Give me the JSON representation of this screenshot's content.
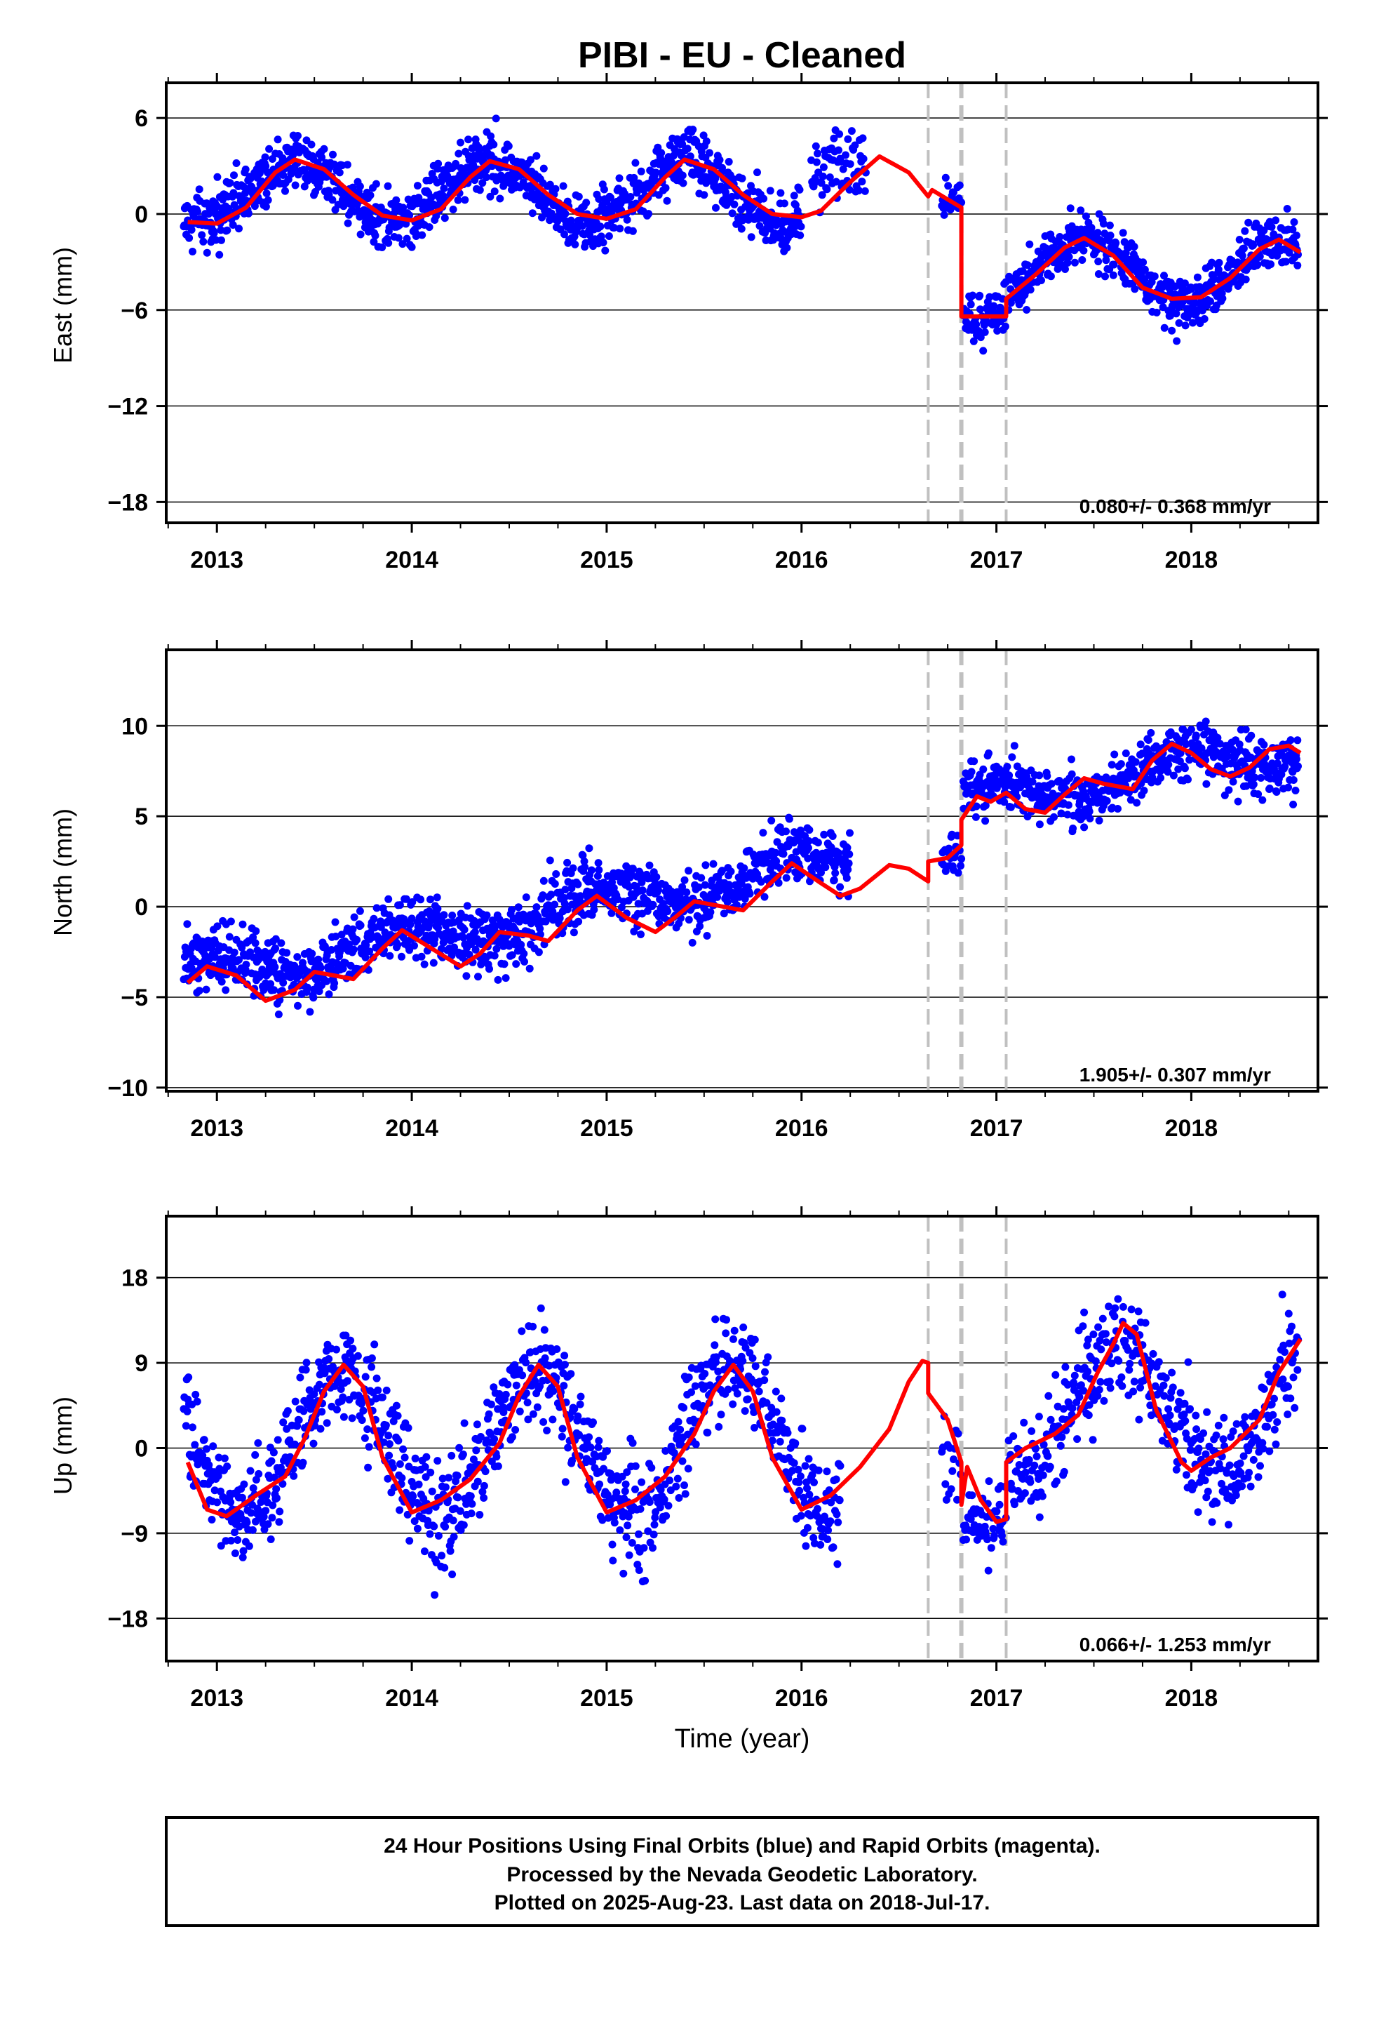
{
  "title": "PIBI  - EU - Cleaned",
  "xlabel": "Time (year)",
  "footer": {
    "line1": "24 Hour Positions Using Final Orbits (blue) and Rapid Orbits (magenta).",
    "line2": "Processed by the Nevada Geodetic Laboratory.",
    "line3": "Plotted on 2025-Aug-23. Last data on 2018-Jul-17."
  },
  "chart_data": [
    {
      "type": "scatter",
      "ylabel": "East (mm)",
      "rate": "0.080+/- 0.368 mm/yr",
      "xlim": [
        2012.74,
        2018.65
      ],
      "ylim": [
        -19.3,
        8.2
      ],
      "yticks": [
        6,
        0,
        -6,
        -12,
        -18
      ],
      "ytick_labels": [
        "6",
        "0",
        "−6",
        "−12",
        "−18"
      ],
      "xticks": [
        2013,
        2014,
        2015,
        2016,
        2017,
        2018
      ],
      "xtick_labels": [
        "2013",
        "2014",
        "2015",
        "2016",
        "2017",
        "2018"
      ],
      "dashed_lines": [
        2016.65,
        2016.82,
        2017.05
      ],
      "fit_line": [
        [
          2012.85,
          -0.5
        ],
        [
          2013.0,
          -0.6
        ],
        [
          2013.15,
          0.4
        ],
        [
          2013.3,
          2.6
        ],
        [
          2013.4,
          3.4
        ],
        [
          2013.55,
          2.8
        ],
        [
          2013.7,
          1.2
        ],
        [
          2013.85,
          -0.1
        ],
        [
          2014.0,
          -0.4
        ],
        [
          2014.15,
          0.3
        ],
        [
          2014.3,
          2.3
        ],
        [
          2014.4,
          3.3
        ],
        [
          2014.55,
          2.8
        ],
        [
          2014.7,
          1.2
        ],
        [
          2014.85,
          0.0
        ],
        [
          2015.0,
          -0.3
        ],
        [
          2015.15,
          0.3
        ],
        [
          2015.3,
          2.3
        ],
        [
          2015.4,
          3.4
        ],
        [
          2015.55,
          2.8
        ],
        [
          2015.7,
          1.2
        ],
        [
          2015.85,
          0.0
        ],
        [
          2016.0,
          -0.2
        ],
        [
          2016.1,
          0.2
        ],
        [
          2016.25,
          2.0
        ],
        [
          2016.4,
          3.6
        ],
        [
          2016.55,
          2.6
        ],
        [
          2016.65,
          1.1
        ],
        [
          2016.67,
          1.5
        ],
        [
          2016.82,
          0.4
        ],
        [
          2016.82,
          -6.4
        ],
        [
          2017.05,
          -6.4
        ],
        [
          2017.05,
          -5.3
        ],
        [
          2017.2,
          -3.8
        ],
        [
          2017.35,
          -2.1
        ],
        [
          2017.45,
          -1.5
        ],
        [
          2017.6,
          -2.6
        ],
        [
          2017.75,
          -4.6
        ],
        [
          2017.9,
          -5.3
        ],
        [
          2018.05,
          -5.2
        ],
        [
          2018.2,
          -4.0
        ],
        [
          2018.35,
          -2.2
        ],
        [
          2018.45,
          -1.6
        ],
        [
          2018.56,
          -2.4
        ]
      ],
      "segments": [
        {
          "x0": 2012.83,
          "x1": 2016.0,
          "model": "seasonal",
          "base": 1.4,
          "amp": 1.9,
          "phase": 2013.4,
          "noise": 1.3,
          "step": 0.0025
        },
        {
          "x0": 2016.05,
          "x1": 2016.33,
          "model": "linear",
          "a": 2.8,
          "b": 0.0,
          "noise": 1.6,
          "step": 0.004
        },
        {
          "x0": 2016.72,
          "x1": 2016.82,
          "model": "linear",
          "a": 0.8,
          "b": 0.0,
          "noise": 0.8,
          "step": 0.004
        },
        {
          "x0": 2016.83,
          "x1": 2017.05,
          "model": "linear",
          "a": -6.5,
          "b": 0.0,
          "noise": 1.2,
          "step": 0.003
        },
        {
          "x0": 2017.06,
          "x1": 2018.55,
          "model": "seasonal",
          "base": -3.5,
          "amp": 1.9,
          "phase": 2017.45,
          "noise": 1.1,
          "step": 0.0025
        }
      ]
    },
    {
      "type": "scatter",
      "ylabel": "North (mm)",
      "rate": "1.905+/- 0.307 mm/yr",
      "xlim": [
        2012.74,
        2018.65
      ],
      "ylim": [
        -10.2,
        14.2
      ],
      "yticks": [
        10,
        5,
        0,
        -5,
        -10
      ],
      "ytick_labels": [
        "10",
        "5",
        "0",
        "−5",
        "−10"
      ],
      "xticks": [
        2013,
        2014,
        2015,
        2016,
        2017,
        2018
      ],
      "xtick_labels": [
        "2013",
        "2014",
        "2015",
        "2016",
        "2017",
        "2018"
      ],
      "dashed_lines": [
        2016.65,
        2016.82,
        2017.05
      ],
      "fit_line": [
        [
          2012.85,
          -4.2
        ],
        [
          2012.95,
          -3.3
        ],
        [
          2013.1,
          -3.8
        ],
        [
          2013.25,
          -5.2
        ],
        [
          2013.4,
          -4.6
        ],
        [
          2013.5,
          -3.6
        ],
        [
          2013.6,
          -3.8
        ],
        [
          2013.7,
          -4.0
        ],
        [
          2013.85,
          -2.3
        ],
        [
          2013.95,
          -1.3
        ],
        [
          2014.1,
          -2.3
        ],
        [
          2014.25,
          -3.3
        ],
        [
          2014.35,
          -2.6
        ],
        [
          2014.45,
          -1.4
        ],
        [
          2014.6,
          -1.6
        ],
        [
          2014.7,
          -1.9
        ],
        [
          2014.85,
          -0.2
        ],
        [
          2014.95,
          0.6
        ],
        [
          2015.1,
          -0.6
        ],
        [
          2015.25,
          -1.4
        ],
        [
          2015.35,
          -0.6
        ],
        [
          2015.45,
          0.3
        ],
        [
          2015.6,
          0.0
        ],
        [
          2015.7,
          -0.2
        ],
        [
          2015.85,
          1.4
        ],
        [
          2015.95,
          2.4
        ],
        [
          2016.1,
          1.3
        ],
        [
          2016.2,
          0.6
        ],
        [
          2016.3,
          1.0
        ],
        [
          2016.45,
          2.3
        ],
        [
          2016.55,
          2.1
        ],
        [
          2016.65,
          1.4
        ],
        [
          2016.65,
          2.5
        ],
        [
          2016.75,
          2.7
        ],
        [
          2016.82,
          3.4
        ],
        [
          2016.82,
          4.8
        ],
        [
          2016.9,
          6.1
        ],
        [
          2016.97,
          5.8
        ],
        [
          2017.05,
          6.3
        ],
        [
          2017.15,
          5.4
        ],
        [
          2017.25,
          5.2
        ],
        [
          2017.35,
          6.2
        ],
        [
          2017.45,
          7.1
        ],
        [
          2017.55,
          6.8
        ],
        [
          2017.7,
          6.5
        ],
        [
          2017.8,
          8.1
        ],
        [
          2017.9,
          9.0
        ],
        [
          2018.0,
          8.5
        ],
        [
          2018.1,
          7.6
        ],
        [
          2018.2,
          7.2
        ],
        [
          2018.3,
          7.7
        ],
        [
          2018.4,
          8.7
        ],
        [
          2018.5,
          8.9
        ],
        [
          2018.56,
          8.5
        ]
      ],
      "segments": [
        {
          "x0": 2012.83,
          "x1": 2016.25,
          "model": "trendseason",
          "base": -4.0,
          "slope": 1.9,
          "x_ref": 2012.83,
          "amp": 0.9,
          "phase": 2013.95,
          "noise": 1.2,
          "step": 0.0025
        },
        {
          "x0": 2016.72,
          "x1": 2016.82,
          "model": "linear",
          "a": 2.8,
          "b": 0.0,
          "noise": 0.7,
          "step": 0.004
        },
        {
          "x0": 2016.83,
          "x1": 2018.55,
          "model": "trendseason",
          "base": 5.6,
          "slope": 1.9,
          "x_ref": 2016.83,
          "amp": 0.9,
          "phase": 2017.95,
          "noise": 1.1,
          "step": 0.0025
        }
      ]
    },
    {
      "type": "scatter",
      "ylabel": "Up (mm)",
      "rate": "0.066+/- 1.253 mm/yr",
      "xlim": [
        2012.74,
        2018.65
      ],
      "ylim": [
        -22.5,
        24.5
      ],
      "yticks": [
        18,
        9,
        0,
        -9,
        -18
      ],
      "ytick_labels": [
        "18",
        "9",
        "0",
        "−9",
        "−18"
      ],
      "xticks": [
        2013,
        2014,
        2015,
        2016,
        2017,
        2018
      ],
      "xtick_labels": [
        "2013",
        "2014",
        "2015",
        "2016",
        "2017",
        "2018"
      ],
      "dashed_lines": [
        2016.65,
        2016.82,
        2017.05
      ],
      "fit_line": [
        [
          2012.85,
          -1.5
        ],
        [
          2012.95,
          -6.5
        ],
        [
          2013.05,
          -7.2
        ],
        [
          2013.2,
          -5.0
        ],
        [
          2013.35,
          -3.0
        ],
        [
          2013.45,
          1.0
        ],
        [
          2013.55,
          6.0
        ],
        [
          2013.65,
          8.8
        ],
        [
          2013.75,
          6.5
        ],
        [
          2013.85,
          -1.0
        ],
        [
          2014.0,
          -6.8
        ],
        [
          2014.15,
          -5.5
        ],
        [
          2014.3,
          -3.3
        ],
        [
          2014.45,
          0.5
        ],
        [
          2014.55,
          5.5
        ],
        [
          2014.65,
          8.8
        ],
        [
          2014.75,
          6.5
        ],
        [
          2014.85,
          -1.0
        ],
        [
          2015.0,
          -6.8
        ],
        [
          2015.15,
          -5.5
        ],
        [
          2015.3,
          -3.0
        ],
        [
          2015.45,
          1.5
        ],
        [
          2015.55,
          6.0
        ],
        [
          2015.65,
          8.8
        ],
        [
          2015.75,
          6.0
        ],
        [
          2015.85,
          -1.0
        ],
        [
          2016.0,
          -6.5
        ],
        [
          2016.15,
          -5.0
        ],
        [
          2016.3,
          -2.0
        ],
        [
          2016.45,
          2.0
        ],
        [
          2016.55,
          7.0
        ],
        [
          2016.62,
          9.2
        ],
        [
          2016.65,
          9.0
        ],
        [
          2016.65,
          5.8
        ],
        [
          2016.75,
          3.0
        ],
        [
          2016.82,
          -1.5
        ],
        [
          2016.82,
          -6.0
        ],
        [
          2016.85,
          -2.0
        ],
        [
          2016.92,
          -5.5
        ],
        [
          2017.0,
          -7.8
        ],
        [
          2017.05,
          -7.5
        ],
        [
          2017.05,
          -1.5
        ],
        [
          2017.15,
          0.0
        ],
        [
          2017.3,
          1.5
        ],
        [
          2017.42,
          3.5
        ],
        [
          2017.52,
          8.0
        ],
        [
          2017.6,
          11.0
        ],
        [
          2017.65,
          13.2
        ],
        [
          2017.72,
          12.0
        ],
        [
          2017.82,
          4.0
        ],
        [
          2017.95,
          -1.5
        ],
        [
          2018.0,
          -2.4
        ],
        [
          2018.1,
          -1.0
        ],
        [
          2018.2,
          0.0
        ],
        [
          2018.35,
          3.0
        ],
        [
          2018.45,
          8.0
        ],
        [
          2018.56,
          11.5
        ]
      ],
      "segments": [
        {
          "x0": 2012.83,
          "x1": 2016.2,
          "model": "seasonal",
          "base": 0.5,
          "amp": 7.5,
          "phase": 2013.64,
          "noise": 3.8,
          "step": 0.003
        },
        {
          "x0": 2016.72,
          "x1": 2016.82,
          "model": "linear",
          "a": 0.0,
          "b": 0.0,
          "noise": 5.0,
          "step": 0.006
        },
        {
          "x0": 2016.83,
          "x1": 2017.05,
          "model": "linear",
          "a": -8.0,
          "b": 0.0,
          "noise": 3.0,
          "step": 0.003
        },
        {
          "x0": 2017.06,
          "x1": 2018.55,
          "model": "seasonal",
          "base": 4.0,
          "amp": 7.0,
          "phase": 2017.64,
          "noise": 4.0,
          "step": 0.003
        }
      ]
    }
  ]
}
